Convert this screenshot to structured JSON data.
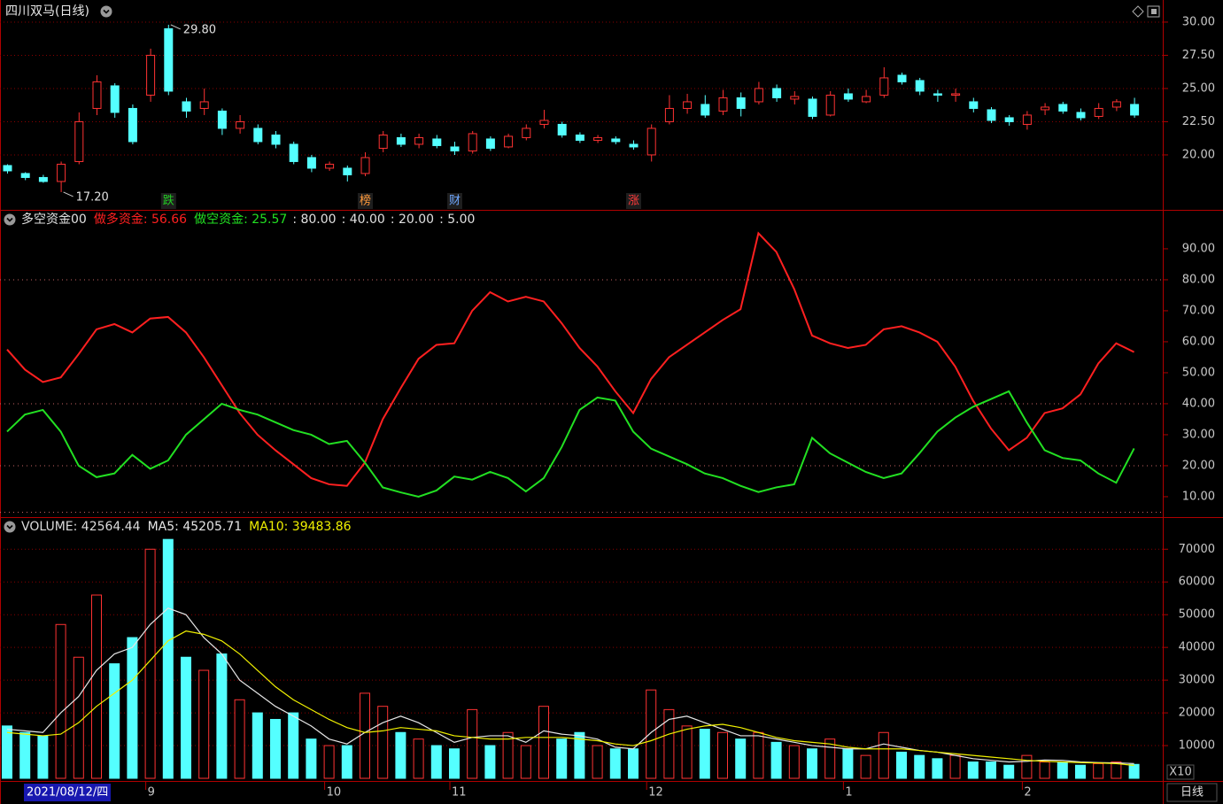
{
  "chart_data": [
    {
      "type": "candlestick",
      "title": "四川双马(日线)",
      "up_color": "#ff3232",
      "down_color": "#54ffff",
      "grid": true,
      "open": [
        19.2,
        18.6,
        18.3,
        18.0,
        19.5,
        23.5,
        25.2,
        23.5,
        24.5,
        29.5,
        24.0,
        23.5,
        23.3,
        22.0,
        22.0,
        21.5,
        20.8,
        19.8,
        19.0,
        19.0,
        18.6,
        20.5,
        21.3,
        20.8,
        21.2,
        20.6,
        20.3,
        21.2,
        20.6,
        21.3,
        22.3,
        22.3,
        21.5,
        21.1,
        21.2,
        20.8,
        20.0,
        22.5,
        23.5,
        23.8,
        23.3,
        24.3,
        24.0,
        25.0,
        24.2,
        24.2,
        23.0,
        24.6,
        24.0,
        24.5,
        26.0,
        25.6,
        24.6,
        24.5,
        24.0,
        23.4,
        22.8,
        22.3,
        23.4,
        23.8,
        23.2,
        22.9,
        23.6,
        23.8
      ],
      "high": [
        19.3,
        18.7,
        18.5,
        19.5,
        23.2,
        26.0,
        25.4,
        23.8,
        28.0,
        29.8,
        24.3,
        25.0,
        23.5,
        23.0,
        22.3,
        21.8,
        21.0,
        20.0,
        19.5,
        19.2,
        20.2,
        21.8,
        21.6,
        21.6,
        21.5,
        21.0,
        21.8,
        21.4,
        21.6,
        22.3,
        23.4,
        22.5,
        21.7,
        21.5,
        21.4,
        21.1,
        22.3,
        24.5,
        24.6,
        24.5,
        24.9,
        24.7,
        25.5,
        25.3,
        24.8,
        24.4,
        24.8,
        25.0,
        24.9,
        26.6,
        26.2,
        25.8,
        24.9,
        25.0,
        24.3,
        23.6,
        23.0,
        23.3,
        23.9,
        24.0,
        23.5,
        23.9,
        24.2,
        24.3
      ],
      "low": [
        18.6,
        18.1,
        17.9,
        17.2,
        19.3,
        23.0,
        22.8,
        20.8,
        24.0,
        24.5,
        22.8,
        23.0,
        21.5,
        21.6,
        20.8,
        20.5,
        19.3,
        18.7,
        18.8,
        18.0,
        18.4,
        20.2,
        20.6,
        20.5,
        20.5,
        20.0,
        20.1,
        20.3,
        20.5,
        21.1,
        22.0,
        21.3,
        20.9,
        20.9,
        20.8,
        20.4,
        19.5,
        22.3,
        23.1,
        22.8,
        23.0,
        22.9,
        23.8,
        24.0,
        23.8,
        22.7,
        22.9,
        24.0,
        23.9,
        24.3,
        25.3,
        24.5,
        24.0,
        24.0,
        23.2,
        22.4,
        22.2,
        21.9,
        23.0,
        23.1,
        22.6,
        22.7,
        23.3,
        22.8
      ],
      "close": [
        18.8,
        18.3,
        18.0,
        19.3,
        22.5,
        25.5,
        23.2,
        21.0,
        27.5,
        24.8,
        23.3,
        24.0,
        22.0,
        22.5,
        21.0,
        20.8,
        19.5,
        19.0,
        19.3,
        18.5,
        19.8,
        21.5,
        20.8,
        21.3,
        20.7,
        20.3,
        21.6,
        20.5,
        21.4,
        22.0,
        22.6,
        21.5,
        21.1,
        21.3,
        21.0,
        20.6,
        22.0,
        23.5,
        24.0,
        23.0,
        24.3,
        23.5,
        25.0,
        24.3,
        24.4,
        22.9,
        24.5,
        24.2,
        24.4,
        25.8,
        25.5,
        24.8,
        24.5,
        24.6,
        23.5,
        22.6,
        22.5,
        23.0,
        23.6,
        23.3,
        22.8,
        23.5,
        24.0,
        23.0
      ],
      "ylim": [
        15.93,
        31.33
      ],
      "yticks": [
        {
          "value": 20,
          "label": "20.00"
        },
        {
          "value": 22.5,
          "label": "22.50"
        },
        {
          "value": 25,
          "label": "25.00"
        },
        {
          "value": 27.5,
          "label": "27.50"
        },
        {
          "value": 30,
          "label": "30.00"
        }
      ],
      "max_label": {
        "value": 29.8,
        "label": "29.80"
      },
      "min_label": {
        "value": 17.2,
        "label": "17.20"
      },
      "markers": [
        null,
        null,
        null,
        null,
        null,
        null,
        null,
        null,
        null,
        {
          "label": "跌",
          "color": "#22cc22"
        },
        null,
        null,
        null,
        null,
        null,
        null,
        null,
        null,
        null,
        null,
        {
          "label": "榜",
          "color": "#ff9a3c"
        },
        null,
        null,
        null,
        null,
        {
          "label": "财",
          "color": "#6fa8ff"
        },
        null,
        null,
        null,
        null,
        null,
        null,
        null,
        null,
        null,
        {
          "label": "涨",
          "color": "#ff3a3a"
        },
        null,
        null,
        null,
        null,
        null,
        null,
        null,
        null,
        null,
        null,
        null,
        null,
        null,
        null,
        null,
        null,
        null,
        null,
        null,
        null,
        null,
        null,
        null,
        null,
        null,
        null,
        null,
        null
      ]
    },
    {
      "type": "line",
      "title": "多空资金00",
      "grid": false,
      "series": [
        {
          "name": "做多资金",
          "color": "#ff2020",
          "last_label": ": 56.66",
          "values": [
            57.5,
            51,
            47,
            48.5,
            56,
            64,
            65.7,
            63,
            67.5,
            68,
            63,
            55,
            46,
            37,
            30,
            25,
            20.5,
            16,
            14,
            13.5,
            21,
            35,
            45,
            54.5,
            59,
            59.5,
            70,
            76,
            73,
            74.5,
            73,
            66,
            58,
            52,
            44,
            37,
            48,
            55,
            59,
            63,
            67,
            70.5,
            95,
            89,
            77,
            62,
            59.5,
            58,
            59,
            64,
            65,
            63,
            60,
            52,
            41,
            32,
            25,
            29,
            37,
            38.5,
            43,
            53,
            59.5,
            56.66
          ]
        },
        {
          "name": "做空资金",
          "color": "#22e022",
          "last_label": ": 25.57",
          "values": [
            31,
            36.5,
            38,
            31,
            20,
            16.3,
            17.5,
            23.5,
            19,
            21.7,
            30,
            35,
            40,
            38,
            36.5,
            34,
            31.5,
            30,
            27,
            28,
            21,
            13,
            11.4,
            10,
            12,
            16.5,
            15.5,
            18,
            16,
            11.7,
            16,
            26,
            38,
            42,
            41,
            31,
            25.5,
            23,
            20.5,
            17.5,
            16,
            13.5,
            11.5,
            13,
            14,
            29,
            24,
            21,
            18,
            16,
            17.5,
            24,
            31,
            35.5,
            39,
            41.5,
            44,
            34,
            25,
            22.5,
            21.7,
            17.5,
            14.5,
            25.57
          ]
        }
      ],
      "ref_lines": [
        {
          "value": 80,
          "label": ": 80.00"
        },
        {
          "value": 40,
          "label": ": 40.00"
        },
        {
          "value": 20,
          "label": ": 20.00"
        },
        {
          "value": 5,
          "label": ": 5.00"
        }
      ],
      "ylim": [
        3.7,
        101.7
      ],
      "yticks": [
        {
          "value": 10,
          "label": "10.00"
        },
        {
          "value": 20,
          "label": "20.00"
        },
        {
          "value": 30,
          "label": "30.00"
        },
        {
          "value": 40,
          "label": "40.00"
        },
        {
          "value": 50,
          "label": "50.00"
        },
        {
          "value": 60,
          "label": "60.00"
        },
        {
          "value": 70,
          "label": "70.00"
        },
        {
          "value": 80,
          "label": "80.00"
        },
        {
          "value": 90,
          "label": "90.00"
        }
      ]
    },
    {
      "type": "bar",
      "grid": true,
      "up_color": "#ff3232",
      "down_color": "#54ffff",
      "unit_label": "X10",
      "series": [
        {
          "name": "VOLUME",
          "color": "#dcdcdc",
          "last_label": ": 42564.44",
          "values": [
            16000,
            14000,
            13000,
            47000,
            37000,
            56000,
            35000,
            43000,
            70000,
            73000,
            37000,
            33000,
            38000,
            24000,
            20000,
            18000,
            20000,
            12000,
            10000,
            10000,
            26000,
            22000,
            14000,
            12000,
            10000,
            9000,
            21000,
            10000,
            14000,
            10000,
            22000,
            12000,
            14000,
            10000,
            9000,
            9000,
            27000,
            21000,
            16000,
            15000,
            14000,
            12000,
            14000,
            11000,
            10000,
            9000,
            12000,
            9000,
            7000,
            14000,
            8000,
            7000,
            6000,
            7000,
            5000,
            5000,
            4000,
            7000,
            5000,
            5000,
            4000,
            4500,
            5000,
            4256
          ]
        },
        {
          "name": "MA5",
          "type": "line",
          "color": "#e6e6e6",
          "last_label": ": 45205.71",
          "values": [
            15000,
            14500,
            14000,
            20000,
            25000,
            33000,
            38000,
            40000,
            47000,
            52000,
            50000,
            43000,
            38000,
            30000,
            26000,
            22000,
            19000,
            16000,
            12000,
            10500,
            14000,
            17000,
            19000,
            17000,
            14000,
            11000,
            12500,
            13000,
            13000,
            11000,
            14500,
            13500,
            13000,
            12000,
            9500,
            9000,
            14000,
            18000,
            19000,
            17000,
            15000,
            13000,
            13000,
            12000,
            11000,
            10000,
            9500,
            9000,
            9000,
            10500,
            9500,
            8500,
            8000,
            7000,
            6000,
            5500,
            5000,
            5200,
            5600,
            5500,
            5000,
            4800,
            4700,
            4521
          ]
        },
        {
          "name": "MA10",
          "type": "line",
          "color": "#f0f000",
          "last_label": ": 39483.86",
          "values": [
            14000,
            13500,
            13000,
            13500,
            17000,
            22000,
            26000,
            30000,
            36000,
            42000,
            45000,
            44000,
            42000,
            38000,
            33000,
            28000,
            24000,
            21000,
            18000,
            15500,
            14000,
            14500,
            15500,
            15000,
            14500,
            13000,
            12500,
            12000,
            12000,
            12500,
            12500,
            12500,
            12000,
            11500,
            10500,
            10000,
            11500,
            13500,
            15000,
            16000,
            16500,
            15500,
            14000,
            12500,
            11500,
            11000,
            10500,
            9500,
            9000,
            9000,
            9000,
            8500,
            8000,
            7500,
            7000,
            6500,
            6000,
            5500,
            5200,
            5000,
            4800,
            4700,
            4500,
            3948
          ]
        }
      ],
      "ylim": [
        0,
        79000
      ],
      "yticks": [
        10000,
        20000,
        30000,
        40000,
        50000,
        60000,
        70000
      ],
      "categories": [
        null,
        null,
        null,
        null,
        null,
        null,
        null,
        null,
        "9",
        null,
        null,
        null,
        null,
        null,
        null,
        null,
        null,
        null,
        "10",
        null,
        null,
        null,
        null,
        null,
        null,
        "11",
        null,
        null,
        null,
        null,
        null,
        null,
        null,
        null,
        null,
        null,
        "12",
        null,
        null,
        null,
        null,
        null,
        null,
        null,
        null,
        null,
        null,
        "1",
        null,
        null,
        null,
        null,
        null,
        null,
        null,
        null,
        null,
        "2",
        null,
        null,
        null,
        null,
        null,
        null
      ],
      "cursor_label": "2021/08/12/四",
      "period_label": "日线"
    }
  ]
}
